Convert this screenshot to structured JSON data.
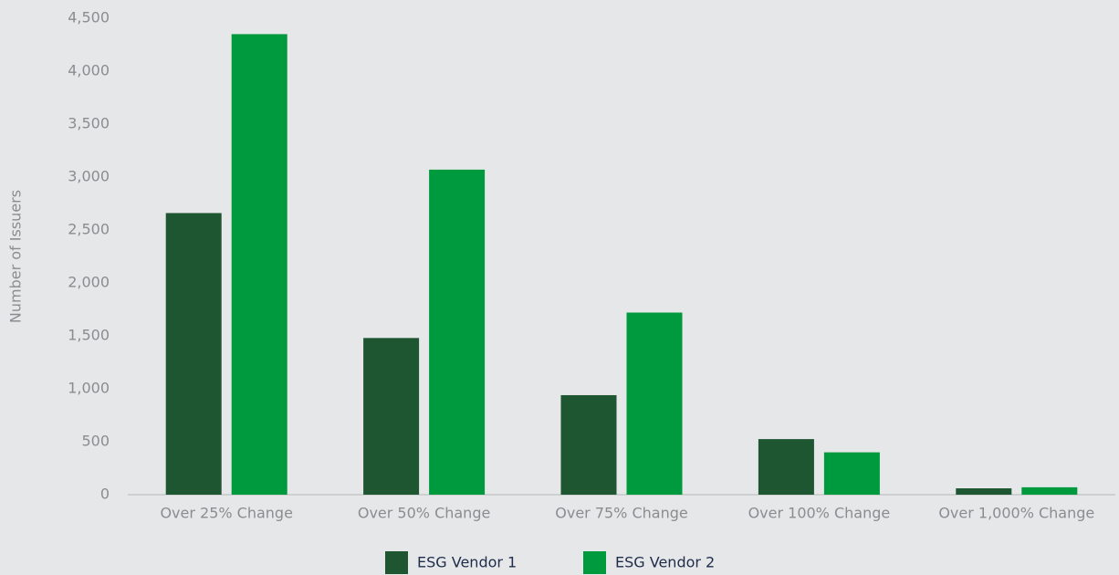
{
  "chart_data": {
    "type": "bar",
    "y_label": "Number of Issuers",
    "categories": [
      "Over 25% Change",
      "Over 50% Change",
      "Over 75% Change",
      "Over 100% Change",
      "Over 1,000% Change"
    ],
    "series": [
      {
        "name": "ESG Vendor 1",
        "color": "#1e5631",
        "values": [
          2660,
          1480,
          940,
          525,
          60
        ]
      },
      {
        "name": "ESG Vendor 2",
        "color": "#009a3e",
        "values": [
          4350,
          3070,
          1720,
          400,
          70
        ]
      }
    ],
    "ylim": [
      0,
      4500
    ],
    "yticks": [
      0,
      500,
      {
        "value": 1000,
        "label": "1,000"
      },
      {
        "value": 1500,
        "label": "1,500"
      },
      {
        "value": 2000,
        "label": "2,000"
      },
      {
        "value": 2500,
        "label": "2,500"
      },
      {
        "value": 3000,
        "label": "3,000"
      },
      {
        "value": 3500,
        "label": "3,500"
      },
      {
        "value": 4000,
        "label": "4,000"
      },
      {
        "value": 4500,
        "label": "4,500"
      }
    ],
    "grid": false,
    "legend": "bottom"
  }
}
